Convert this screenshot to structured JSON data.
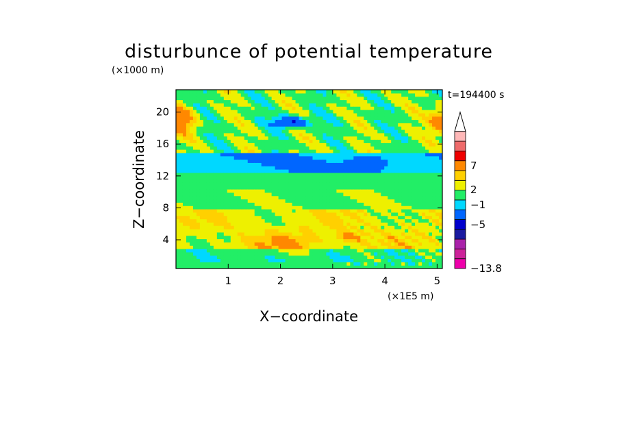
{
  "chart_data": {
    "type": "heatmap",
    "title": "disturbunce of potential temperature",
    "xlabel": "X−coordinate",
    "ylabel": "Z−coordinate",
    "x_unit": "(×1E5 m)",
    "y_unit": "(×1000 m)",
    "time_label": "t=194400 s",
    "xlim": [
      0.0,
      5.1
    ],
    "ylim": [
      0.4,
      22.8
    ],
    "x_ticks": [
      1,
      2,
      3,
      4,
      5
    ],
    "y_ticks": [
      4,
      8,
      12,
      16,
      20
    ],
    "colorbar": {
      "levels": [
        -13.8,
        -11,
        -9,
        -7,
        -5,
        -3,
        -1,
        0,
        1,
        2,
        3,
        5,
        7,
        9,
        11,
        13
      ],
      "colors": [
        "#ee00aa",
        "#cc2299",
        "#aa22aa",
        "#1a1aa0",
        "#0000cc",
        "#0066ff",
        "#00d8ff",
        "#22ee66",
        "#eef000",
        "#ffd000",
        "#ff8800",
        "#ee0000",
        "#ee6a6a",
        "#ffb8b8"
      ],
      "labeled_levels": [
        7,
        2,
        -1,
        -5,
        -13.8
      ],
      "extend": "max"
    }
  },
  "labels": {
    "cb_7": "7",
    "cb_2": "2",
    "cb_m1": "−1",
    "cb_m5": "−5",
    "cb_min": "−13.8"
  }
}
